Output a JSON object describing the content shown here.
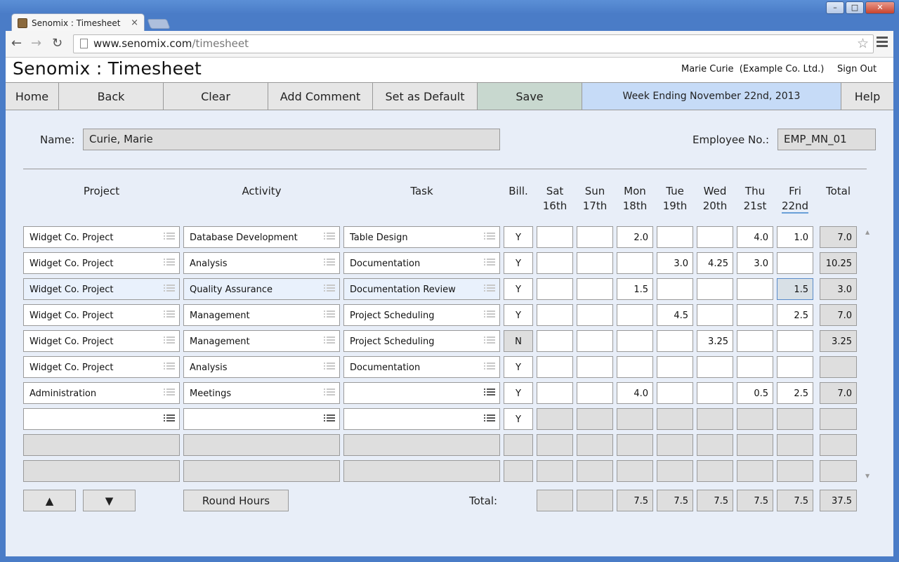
{
  "browser": {
    "tab_title": "Senomix : Timesheet",
    "tab_close": "×",
    "url_host": "www.senomix.com",
    "url_path": "/timesheet",
    "back_glyph": "←",
    "forward_glyph": "→",
    "reload_glyph": "↻",
    "star_glyph": "☆",
    "win_min": "–",
    "win_max": "□",
    "win_close": "✕"
  },
  "header": {
    "title": "Senomix : Timesheet",
    "user": "Marie Curie  (Example Co. Ltd.)",
    "sign_out": "Sign Out"
  },
  "nav": {
    "home": "Home",
    "back": "Back",
    "clear": "Clear",
    "add_comment": "Add Comment",
    "set_default": "Set as Default",
    "save": "Save",
    "week": "Week Ending November 22nd, 2013",
    "help": "Help"
  },
  "form": {
    "name_label": "Name:",
    "name_value": "Curie, Marie",
    "emp_label": "Employee No.:",
    "emp_value": "EMP_MN_01"
  },
  "columns": {
    "project": "Project",
    "activity": "Activity",
    "task": "Task",
    "bill": "Bill.",
    "days": [
      {
        "name": "Sat",
        "date": "16th"
      },
      {
        "name": "Sun",
        "date": "17th"
      },
      {
        "name": "Mon",
        "date": "18th"
      },
      {
        "name": "Tue",
        "date": "19th"
      },
      {
        "name": "Wed",
        "date": "20th"
      },
      {
        "name": "Thu",
        "date": "21st"
      },
      {
        "name": "Fri",
        "date": "22nd"
      }
    ],
    "total": "Total"
  },
  "rows": [
    {
      "project": "Widget Co. Project",
      "activity": "Database Development",
      "task": "Table Design",
      "bill": "Y",
      "hours": [
        "",
        "",
        "2.0",
        "",
        "",
        "4.0",
        "1.0"
      ],
      "total": "7.0"
    },
    {
      "project": "Widget Co. Project",
      "activity": "Analysis",
      "task": "Documentation",
      "bill": "Y",
      "hours": [
        "",
        "",
        "",
        "3.0",
        "4.25",
        "3.0",
        ""
      ],
      "total": "10.25"
    },
    {
      "project": "Widget Co. Project",
      "activity": "Quality Assurance",
      "task": "Documentation Review",
      "bill": "Y",
      "hours": [
        "",
        "",
        "1.5",
        "",
        "",
        "",
        "1.5"
      ],
      "total": "3.0"
    },
    {
      "project": "Widget Co. Project",
      "activity": "Management",
      "task": "Project Scheduling",
      "bill": "Y",
      "hours": [
        "",
        "",
        "",
        "4.5",
        "",
        "",
        "2.5"
      ],
      "total": "7.0"
    },
    {
      "project": "Widget Co. Project",
      "activity": "Management",
      "task": "Project Scheduling",
      "bill": "N",
      "hours": [
        "",
        "",
        "",
        "",
        "3.25",
        "",
        ""
      ],
      "total": "3.25"
    },
    {
      "project": "Widget Co. Project",
      "activity": "Analysis",
      "task": "Documentation",
      "bill": "Y",
      "hours": [
        "",
        "",
        "",
        "",
        "",
        "",
        ""
      ],
      "total": ""
    },
    {
      "project": "Administration",
      "activity": "Meetings",
      "task": "",
      "bill": "Y",
      "hours": [
        "",
        "",
        "4.0",
        "",
        "",
        "0.5",
        "2.5"
      ],
      "total": "7.0"
    },
    {
      "project": "",
      "activity": "",
      "task": "",
      "bill": "Y",
      "hours": [
        "",
        "",
        "",
        "",
        "",
        "",
        ""
      ],
      "total": ""
    },
    {
      "project": "",
      "activity": "",
      "task": "",
      "bill": "",
      "hours": [
        "",
        "",
        "",
        "",
        "",
        "",
        ""
      ],
      "total": ""
    },
    {
      "project": "",
      "activity": "",
      "task": "",
      "bill": "",
      "hours": [
        "",
        "",
        "",
        "",
        "",
        "",
        ""
      ],
      "total": ""
    }
  ],
  "footer": {
    "up": "▲",
    "down": "▼",
    "round_hours": "Round Hours",
    "total_label": "Total:",
    "day_totals": [
      "",
      "",
      "7.5",
      "7.5",
      "7.5",
      "7.5",
      "7.5"
    ],
    "grand_total": "37.5"
  },
  "scroll": {
    "up": "▲",
    "down": "▼"
  },
  "colors": {
    "save": "#c8d8cf",
    "week": "#c6dbf7",
    "focus_border": "#5a8bc8"
  }
}
